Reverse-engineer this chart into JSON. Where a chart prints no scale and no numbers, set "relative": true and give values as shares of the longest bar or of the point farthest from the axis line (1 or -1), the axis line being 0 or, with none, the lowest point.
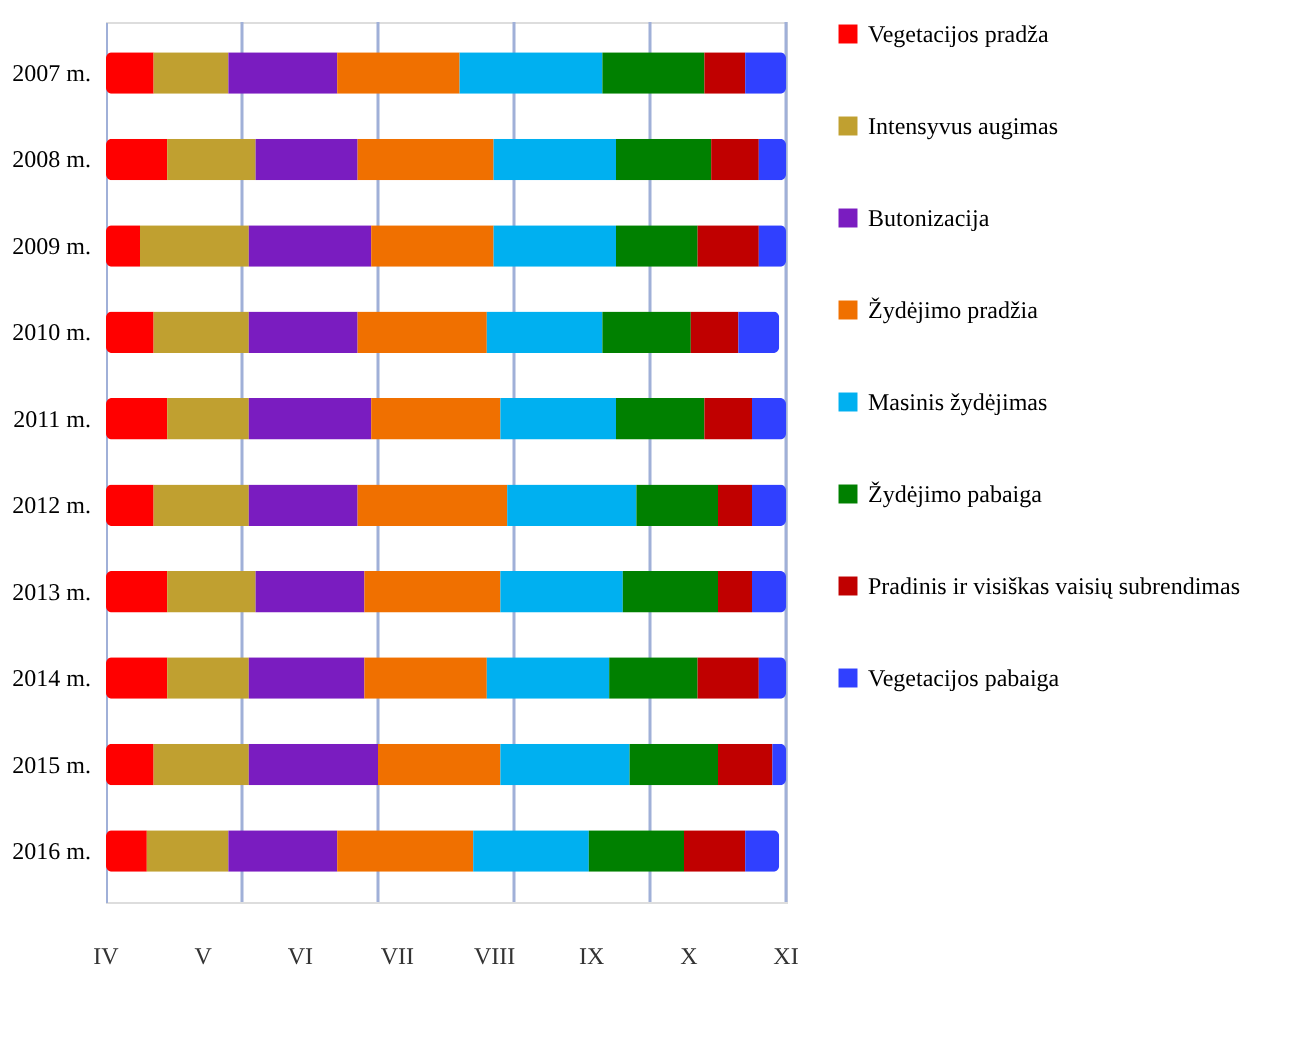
{
  "chart_data": {
    "type": "bar",
    "orientation": "horizontal",
    "stacked": true,
    "relative": true,
    "legend": "right",
    "ref_lines": [
      {
        "axis": "x",
        "value": 0.2,
        "color": "#a0b0d8"
      },
      {
        "axis": "x",
        "value": 0.4,
        "color": "#a0b0d8"
      },
      {
        "axis": "x",
        "value": 0.6,
        "color": "#a0b0d8"
      },
      {
        "axis": "x",
        "value": 0.8,
        "color": "#a0b0d8"
      },
      {
        "axis": "x",
        "value": 1.0,
        "color": "#a0b0d8"
      }
    ],
    "categories": [
      "2007 m.",
      "2008 m.",
      "2009 m.",
      "2010 m.",
      "2011 m.",
      "2012 m.",
      "2013 m.",
      "2014 m.",
      "2015 m.",
      "2016 m."
    ],
    "annotations": [
      "IV",
      "V",
      "VI",
      "VII",
      "VIII",
      "IX",
      "X",
      "XI"
    ],
    "series": [
      {
        "name": "Vegetacijos pradža",
        "color": "#ff0000",
        "values": [
          0.07,
          0.09,
          0.05,
          0.07,
          0.09,
          0.07,
          0.09,
          0.09,
          0.07,
          0.06
        ]
      },
      {
        "name": "Intensyvus augimas",
        "color": "#c0a030",
        "values": [
          0.11,
          0.13,
          0.16,
          0.14,
          0.12,
          0.14,
          0.13,
          0.12,
          0.14,
          0.12
        ]
      },
      {
        "name": "Butonizacija",
        "color": "#7a1cc0",
        "values": [
          0.16,
          0.15,
          0.18,
          0.16,
          0.18,
          0.16,
          0.16,
          0.17,
          0.19,
          0.16
        ]
      },
      {
        "name": "Žydėjimo pradžia",
        "color": "#f07000",
        "values": [
          0.18,
          0.2,
          0.18,
          0.19,
          0.19,
          0.22,
          0.2,
          0.18,
          0.18,
          0.2
        ]
      },
      {
        "name": "Masinis žydėjimas",
        "color": "#00b0f0",
        "values": [
          0.21,
          0.18,
          0.18,
          0.17,
          0.17,
          0.19,
          0.18,
          0.18,
          0.19,
          0.17
        ]
      },
      {
        "name": "Žydėjimo pabaiga",
        "color": "#008000",
        "values": [
          0.15,
          0.14,
          0.12,
          0.13,
          0.13,
          0.12,
          0.14,
          0.13,
          0.13,
          0.14
        ]
      },
      {
        "name": "Pradinis ir visiškas vaisių subrendimas",
        "color": "#c00000",
        "values": [
          0.06,
          0.07,
          0.09,
          0.07,
          0.07,
          0.05,
          0.05,
          0.09,
          0.08,
          0.09
        ]
      },
      {
        "name": "Vegetacijos pabaiga",
        "color": "#3040ff",
        "values": [
          0.06,
          0.04,
          0.04,
          0.06,
          0.05,
          0.05,
          0.05,
          0.04,
          0.02,
          0.05
        ]
      }
    ]
  }
}
